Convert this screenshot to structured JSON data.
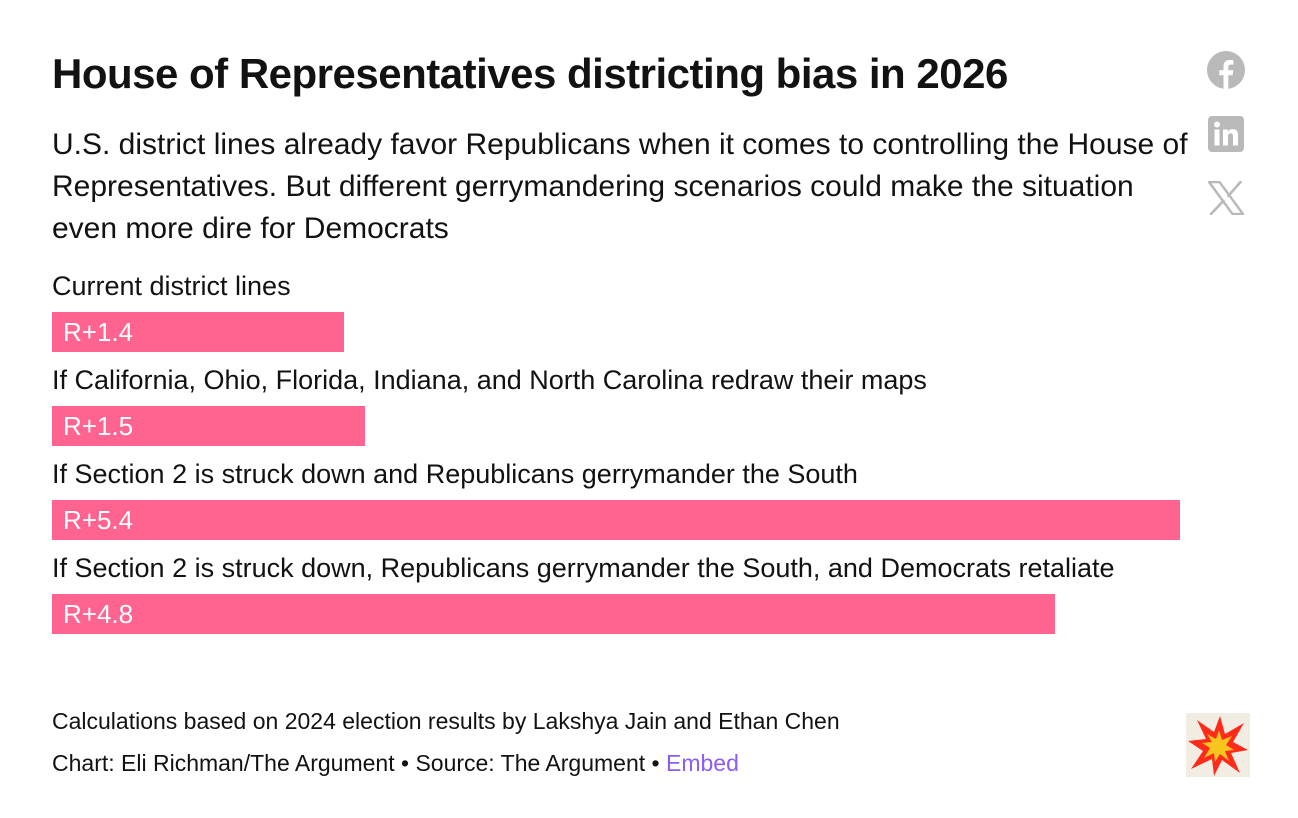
{
  "header": {
    "title": "House of Representatives districting bias in 2026",
    "subtitle": "U.S. district lines already favor Republicans when it comes to controlling the House of Representatives. But different gerrymandering scenarios could make the situation even more dire for Democrats"
  },
  "share_icons": [
    "facebook-icon",
    "linkedin-icon",
    "x-icon"
  ],
  "chart_data": {
    "type": "bar",
    "orientation": "horizontal",
    "categories": [
      "Current district lines",
      "If California, Ohio, Florida, Indiana, and North Carolina redraw their maps",
      "If Section 2 is struck down and Republicans gerrymander the South",
      "If Section 2 is struck down, Republicans gerrymander the South, and Democrats retaliate"
    ],
    "values": [
      1.4,
      1.5,
      5.4,
      4.8
    ],
    "value_labels": [
      "R+1.4",
      "R+1.5",
      "R+5.4",
      "R+4.8"
    ],
    "xlim": [
      0,
      5.4
    ],
    "grid": false,
    "colors": {
      "bar": "#ff6390",
      "bar_label": "#ffffff"
    }
  },
  "footer": {
    "note": "Calculations based on 2024 election results by Lakshya Jain and Ethan Chen",
    "credit": "Chart: Eli Richman/The Argument",
    "separator": "•",
    "source": "Source: The Argument",
    "embed_label": "Embed",
    "colors": {
      "embed": "#8b5cf6"
    }
  },
  "logo": {
    "icon": "starburst-logo-icon",
    "colors": [
      "#ff2a1a",
      "#f7c51e",
      "#f1ede3"
    ]
  }
}
